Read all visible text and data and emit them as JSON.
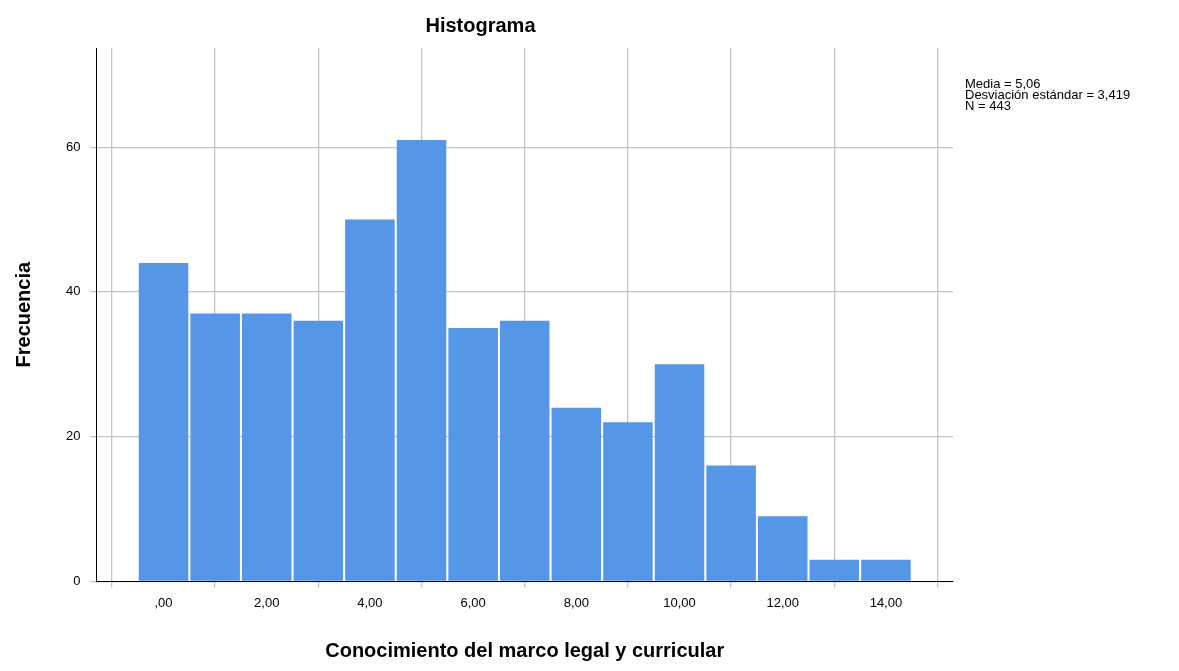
{
  "chart_data": {
    "type": "histogram",
    "title": "Histograma",
    "xlabel": "Conocimiento del marco legal y curricular",
    "ylabel": "Frecuencia",
    "bins": [
      -0.5,
      0.5,
      1.5,
      2.5,
      3.5,
      4.5,
      5.5,
      6.5,
      7.5,
      8.5,
      9.5,
      10.5,
      11.5,
      12.5,
      13.5,
      14.5
    ],
    "values": [
      44,
      37,
      37,
      36,
      50,
      61,
      35,
      36,
      24,
      22,
      30,
      16,
      9,
      3,
      3
    ],
    "color": "#5596e6",
    "xlim": [
      -1.3,
      15.3
    ],
    "xticks": [
      {
        "value": 0,
        "label": ",00"
      },
      {
        "value": 2,
        "label": "2,00"
      },
      {
        "value": 4,
        "label": "4,00"
      },
      {
        "value": 6,
        "label": "6,00"
      },
      {
        "value": 8,
        "label": "8,00"
      },
      {
        "value": 10,
        "label": "10,00"
      },
      {
        "value": 12,
        "label": "12,00"
      },
      {
        "value": 14,
        "label": "14,00"
      }
    ],
    "ylim": [
      0,
      73.7
    ],
    "yticks": [
      0,
      20,
      40,
      60
    ],
    "grid": true,
    "annotations": [
      "Media = 5,06",
      "Desviación estándar = 3,419",
      "N = 443"
    ]
  }
}
